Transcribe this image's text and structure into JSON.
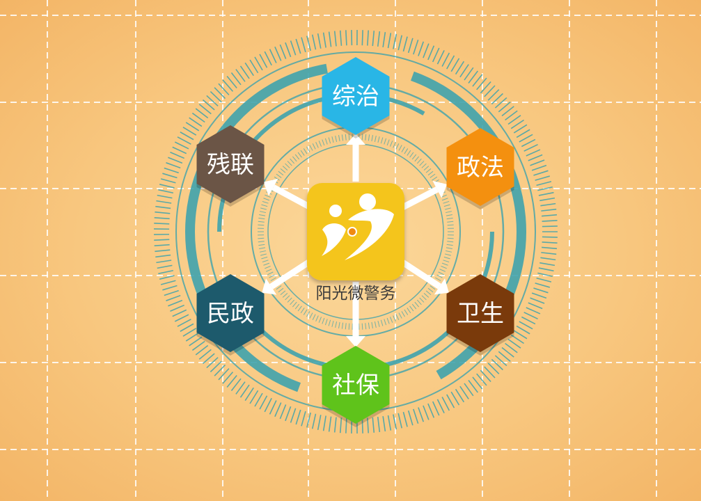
{
  "center": {
    "label": "阳光微警务",
    "icon": "sunshine-people-icon",
    "color": "#f4c51d"
  },
  "nodes": [
    {
      "id": "zongzhi",
      "label": "综治",
      "color": "#29b6e6"
    },
    {
      "id": "zhengfa",
      "label": "政法",
      "color": "#f4900f"
    },
    {
      "id": "weisheng",
      "label": "卫生",
      "color": "#7a3a0b"
    },
    {
      "id": "shebao",
      "label": "社保",
      "color": "#5fc31b"
    },
    {
      "id": "minzheng",
      "label": "民政",
      "color": "#1d5a6c"
    },
    {
      "id": "canlian",
      "label": "残联",
      "color": "#6b5546"
    }
  ],
  "colors": {
    "background": "#f8c77f",
    "grid": "#ffffff",
    "ring": "#3fa3ad",
    "arrow": "#ffffff"
  }
}
